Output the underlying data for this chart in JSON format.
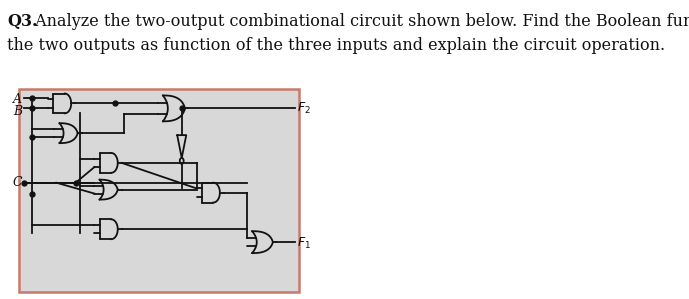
{
  "title_bold": "Q3.",
  "title_rest": " Analyze the two-output combinational circuit shown below. Find the Boolean functions for",
  "title_line2": "the two outputs as function of the three inputs and explain the circuit operation.",
  "title_fontsize": 11.5,
  "box_border_color": "#c87a6a",
  "box_bg": "#d8d8d8",
  "line_color": "#111111",
  "text_color": "#111111",
  "fig_bg": "#ffffff",
  "lw": 1.3
}
